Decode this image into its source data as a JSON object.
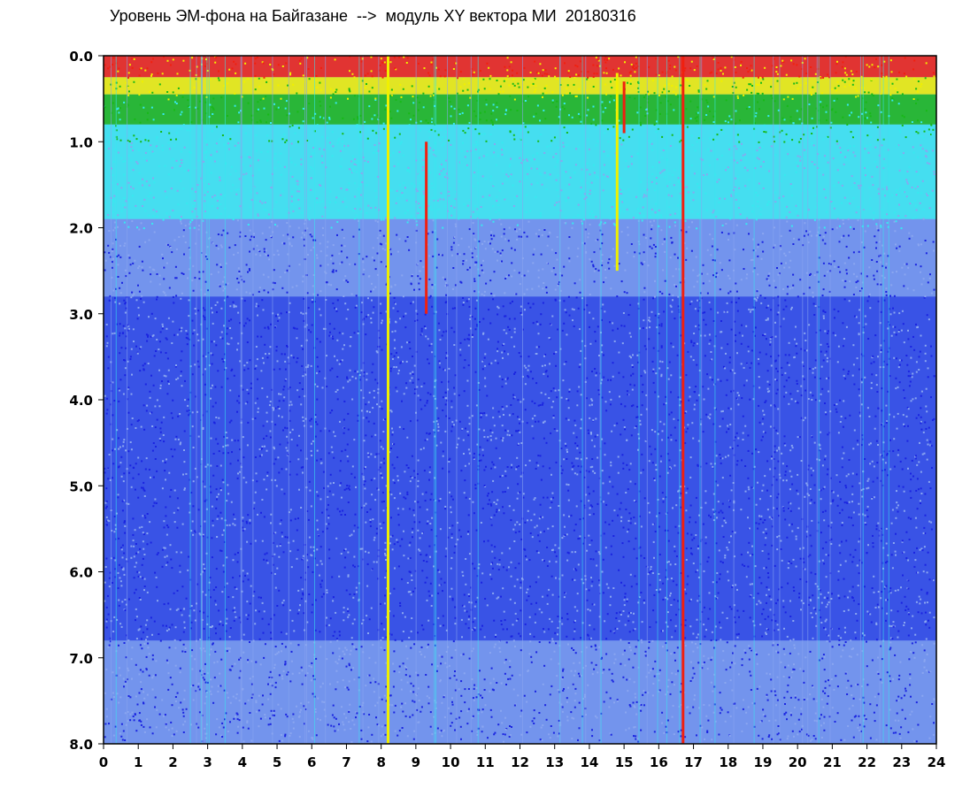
{
  "chart_data": {
    "type": "heatmap",
    "title": "Уровень ЭМ-фона на Байгазане  -->  модуль XY вектора МИ  20180316",
    "xlabel": "",
    "ylabel": "",
    "xlim": [
      0,
      24
    ],
    "ylim": [
      8.0,
      0.0
    ],
    "y_axis_inverted": true,
    "x_ticks": [
      "0",
      "1",
      "2",
      "3",
      "4",
      "5",
      "6",
      "7",
      "8",
      "9",
      "10",
      "11",
      "12",
      "13",
      "14",
      "15",
      "16",
      "17",
      "18",
      "19",
      "20",
      "21",
      "22",
      "23",
      "24"
    ],
    "y_ticks": [
      "0.0",
      "1.0",
      "2.0",
      "3.0",
      "4.0",
      "5.0",
      "6.0",
      "7.0",
      "8.0"
    ],
    "colormap": [
      "#1a24e0",
      "#4a6fe8",
      "#8aa6f0",
      "#38e8f0",
      "#18b818",
      "#f0f000",
      "#f02010"
    ],
    "background_color": "#8aa6f0",
    "grid": false,
    "legend": "none",
    "level_rows": [
      {
        "y_from": 0.0,
        "y_to": 0.25,
        "color": "#f02010"
      },
      {
        "y_from": 0.25,
        "y_to": 0.45,
        "color": "#f0f000"
      },
      {
        "y_from": 0.45,
        "y_to": 0.8,
        "color": "#18b818"
      },
      {
        "y_from": 0.8,
        "y_to": 1.9,
        "color": "#38e8f0"
      },
      {
        "y_from": 1.9,
        "y_to": 2.8,
        "color": "#6e90ec"
      },
      {
        "y_from": 2.8,
        "y_to": 6.8,
        "color": "#2a44e4"
      },
      {
        "y_from": 6.8,
        "y_to": 8.0,
        "color": "#6e90ec"
      }
    ],
    "disturbances": [
      {
        "hour": 8.2,
        "y_from": 0.0,
        "y_to": 8.0,
        "color": "#f0f000"
      },
      {
        "hour": 9.3,
        "y_from": 1.0,
        "y_to": 3.0,
        "color": "#f02010"
      },
      {
        "hour": 14.8,
        "y_from": 0.2,
        "y_to": 2.5,
        "color": "#f0f000"
      },
      {
        "hour": 15.0,
        "y_from": 0.3,
        "y_to": 0.9,
        "color": "#f02010"
      },
      {
        "hour": 16.7,
        "y_from": 0.0,
        "y_to": 8.0,
        "color": "#f02010"
      }
    ]
  }
}
